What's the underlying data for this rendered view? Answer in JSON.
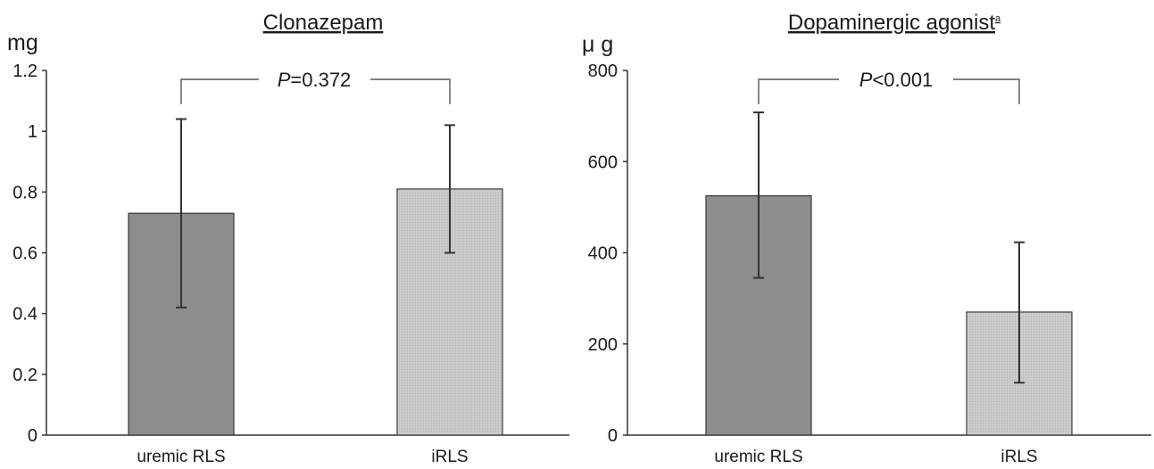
{
  "colors": {
    "uremic_bar": "#8d8d8d",
    "irls_bar": "#c8c8c8",
    "axis": "#333333",
    "errorbar": "#333333"
  },
  "chart_data": [
    {
      "type": "bar",
      "title": "Clonazepam",
      "title_superscript": "",
      "ylabel_unit": "mg",
      "ylim": [
        0,
        1.2
      ],
      "yticks": [
        "0",
        "0.2",
        "0.4",
        "0.6",
        "0.8",
        "1",
        "1.2"
      ],
      "ytick_values": [
        0,
        0.2,
        0.4,
        0.6,
        0.8,
        1.0,
        1.2
      ],
      "categories": [
        "uremic RLS",
        "iRLS"
      ],
      "values": [
        0.73,
        0.81
      ],
      "error_low": [
        0.42,
        0.6
      ],
      "error_high": [
        1.04,
        1.02
      ],
      "significance": {
        "label": "P",
        "operator": "=0.372",
        "between": [
          "uremic RLS",
          "iRLS"
        ]
      },
      "grid": false
    },
    {
      "type": "bar",
      "title": "Dopaminergic agonist",
      "title_superscript": "a",
      "ylabel_unit": "μ g",
      "ylim": [
        0,
        800
      ],
      "yticks": [
        "0",
        "200",
        "400",
        "600",
        "800"
      ],
      "ytick_values": [
        0,
        200,
        400,
        600,
        800
      ],
      "categories": [
        "uremic RLS",
        "iRLS"
      ],
      "values": [
        525,
        270
      ],
      "error_low": [
        345,
        115
      ],
      "error_high": [
        708,
        423
      ],
      "significance": {
        "label": "P",
        "operator": "<0.001",
        "between": [
          "uremic RLS",
          "iRLS"
        ]
      },
      "grid": false
    }
  ]
}
